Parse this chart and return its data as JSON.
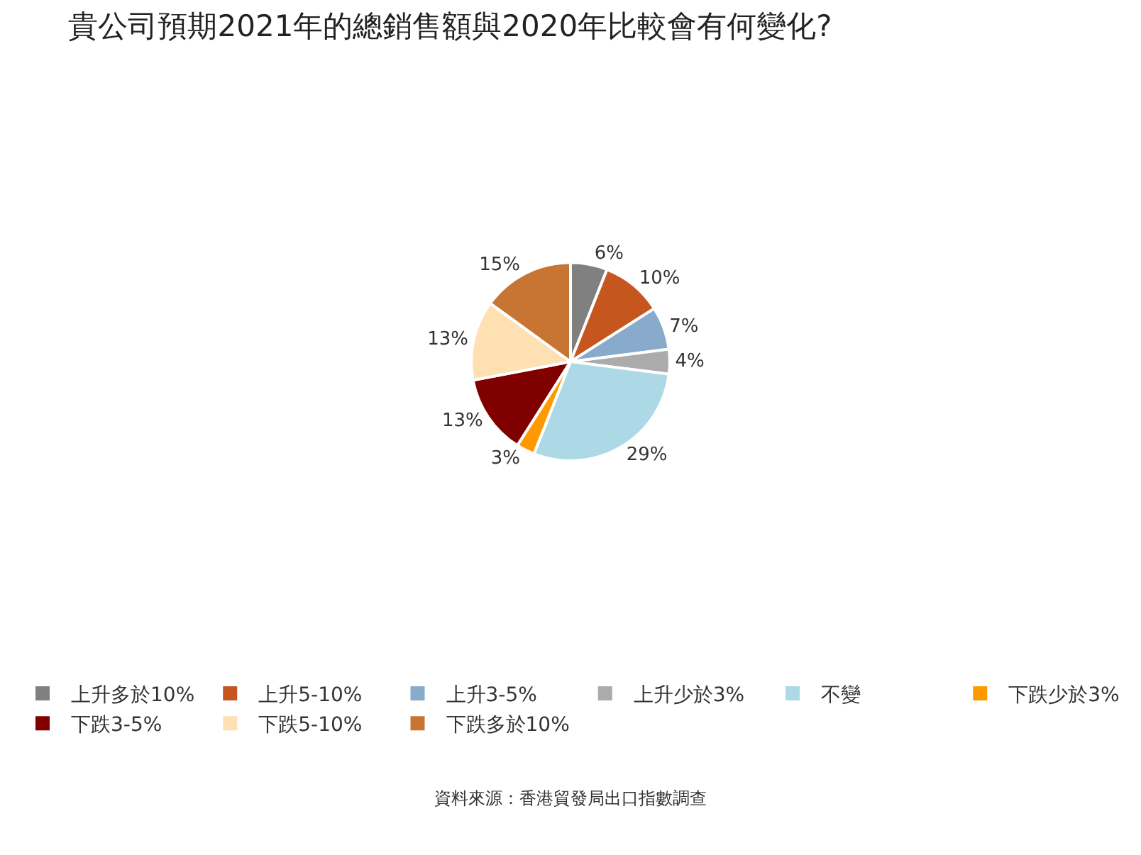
{
  "chart_data": {
    "type": "pie",
    "title": "貴公司預期2021年的總銷售額與2020年比較會有何變化?",
    "categories": [
      "上升多於10%",
      "上升5-10%",
      "上升3-5%",
      "上升少於3%",
      "不變",
      "下跌少於3%",
      "下跌3-5%",
      "下跌5-10%",
      "下跌多於10%"
    ],
    "values": [
      6,
      10,
      7,
      4,
      29,
      3,
      13,
      13,
      15
    ],
    "value_labels": [
      "6%",
      "10%",
      "7%",
      "4%",
      "29%",
      "3%",
      "13%",
      "13%",
      "15%"
    ],
    "colors": [
      "#808080",
      "#c5561e",
      "#88aacb",
      "#ababab",
      "#add8e6",
      "#ff9900",
      "#800000",
      "#ffe0b3",
      "#c87533"
    ],
    "legend": "bottom",
    "annotations": [
      "資料來源：香港貿發局出口指數調查"
    ]
  }
}
